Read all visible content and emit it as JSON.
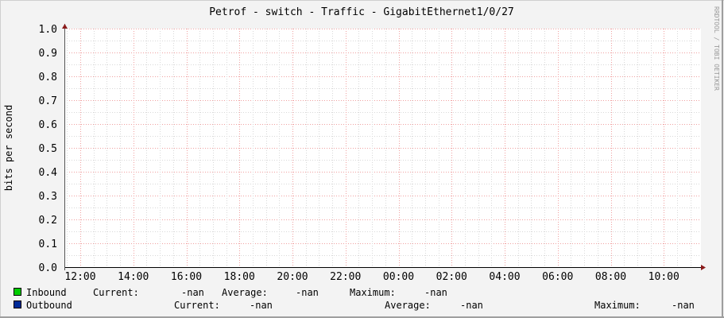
{
  "chart_data": {
    "type": "line",
    "title": "Petrof - switch - Traffic - GigabitEthernet1/0/27",
    "ylabel": "bits per second",
    "xlabel": "",
    "watermark": "RRDTOOL / TOBI OETIKER",
    "ylim": [
      0,
      1.0
    ],
    "y_ticks": [
      "0.0",
      "0.1",
      "0.2",
      "0.3",
      "0.4",
      "0.5",
      "0.6",
      "0.7",
      "0.8",
      "0.9",
      "1.0"
    ],
    "x_ticks": [
      "12:00",
      "14:00",
      "16:00",
      "18:00",
      "20:00",
      "22:00",
      "00:00",
      "02:00",
      "04:00",
      "06:00",
      "08:00",
      "10:00"
    ],
    "grid": true,
    "series": [
      {
        "name": "Inbound",
        "color": "#00cc00",
        "values": [],
        "current_label": "Current:",
        "current": "-nan",
        "average_label": "Average:",
        "average": "-nan",
        "maximum_label": "Maximum:",
        "maximum": "-nan"
      },
      {
        "name": "Outbound",
        "color": "#002a97",
        "values": [],
        "current_label": "Current:",
        "current": "-nan",
        "average_label": "Average:",
        "average": "-nan",
        "maximum_label": "Maximum:",
        "maximum": "-nan"
      }
    ],
    "legend_placement": "bottom"
  }
}
